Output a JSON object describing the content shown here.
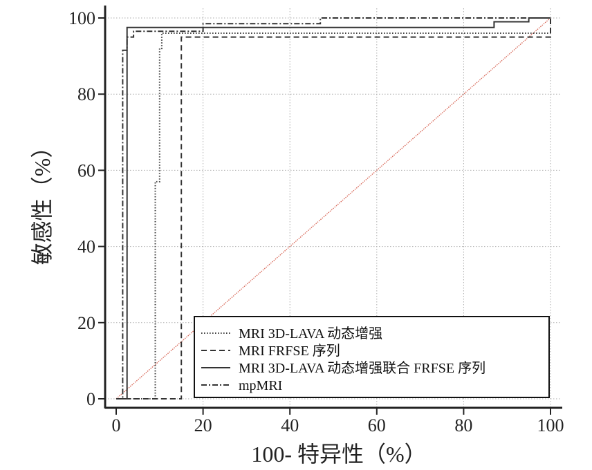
{
  "chart_data": {
    "type": "line",
    "title": "",
    "xlabel": "100- 特异性（%）",
    "ylabel": "敏感性（%）",
    "xlim": [
      0,
      100
    ],
    "ylim": [
      0,
      100
    ],
    "xticks": [
      0,
      20,
      40,
      60,
      80,
      100
    ],
    "yticks": [
      0,
      20,
      40,
      60,
      80,
      100
    ],
    "grid": true,
    "legend_position": "bottom-right",
    "reference_line": {
      "x": [
        0,
        100
      ],
      "y": [
        0,
        100
      ],
      "color": "#d96a5a"
    },
    "series": [
      {
        "name": "MRI 3D-LAVA 动态增强",
        "style": "dotted",
        "color": "#444444",
        "x": [
          0,
          9,
          9,
          10,
          10,
          10.5,
          10.5,
          100
        ],
        "y": [
          0,
          0,
          57,
          57,
          92,
          92,
          96,
          96
        ]
      },
      {
        "name": "MRI FRFSE 序列",
        "style": "dashed",
        "color": "#333333",
        "x": [
          0,
          15,
          15,
          100,
          100
        ],
        "y": [
          0,
          0,
          95,
          95,
          100
        ]
      },
      {
        "name": "MRI 3D-LAVA 动态增强联合 FRFSE 序列",
        "style": "solid",
        "color": "#333333",
        "x": [
          0,
          2.5,
          2.5,
          87,
          87,
          95,
          95,
          100
        ],
        "y": [
          0,
          0,
          97.5,
          97.5,
          99,
          99,
          100,
          100
        ]
      },
      {
        "name": "mpMRI",
        "style": "dashdot",
        "color": "#333333",
        "x": [
          0,
          1.5,
          1.5,
          2.5,
          2.5,
          4,
          4,
          20,
          20,
          47,
          47,
          100
        ],
        "y": [
          0,
          0,
          91.5,
          91.5,
          95,
          95,
          96.5,
          96.5,
          98.5,
          98.5,
          100,
          100
        ]
      }
    ]
  }
}
